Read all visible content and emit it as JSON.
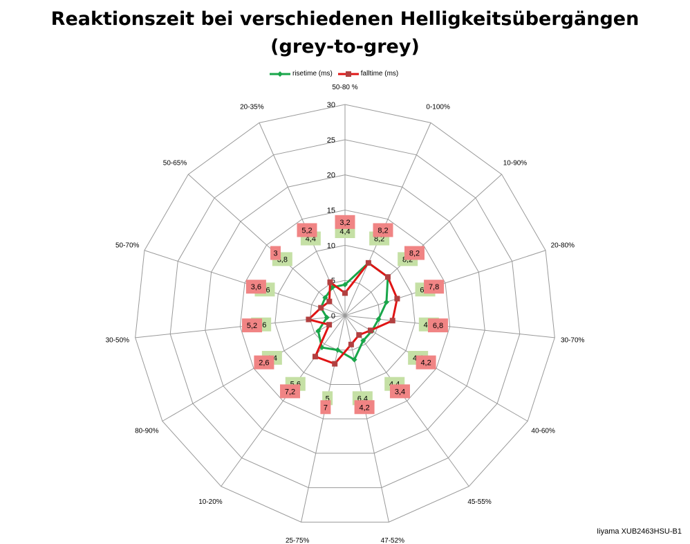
{
  "title_line1": "Reaktionszeit bei verschiedenen Helligkeitsübergängen",
  "title_line2": "(grey-to-grey)",
  "watermark": "Iiyama XUB2463HSU-B1",
  "colors": {
    "rise": "#19A64A",
    "fall": "#E01414",
    "fall_marker": "#B24040",
    "rise_label_bg": "#C5E0A5",
    "fall_label_bg": "#F08484",
    "fall_label_bg_dark": "#E07050",
    "grid": "#999999"
  },
  "chart_data": {
    "type": "radar",
    "title": "Reaktionszeit bei verschiedenen Helligkeitsübergängen (grey-to-grey)",
    "categories": [
      "50-80 %",
      "0-100%",
      "10-90%",
      "20-80%",
      "30-70%",
      "40-60%",
      "45-55%",
      "47-52%",
      "25-75%",
      "10-20%",
      "80-90%",
      "30-50%",
      "50-70%",
      "50-65%",
      "20-35%"
    ],
    "series": [
      {
        "name": "risetime (ms)",
        "values": [
          4.4,
          8.2,
          8.2,
          6.2,
          4.8,
          4.4,
          4.4,
          6.4,
          5,
          5.6,
          4.4,
          2.6,
          3.6,
          3.8,
          4.4
        ]
      },
      {
        "name": "falltime (ms)",
        "values": [
          3.2,
          8.2,
          8.2,
          7.8,
          6.8,
          4.2,
          3.4,
          4.2,
          7,
          7.2,
          2.6,
          5.2,
          3.6,
          3,
          5.2
        ]
      }
    ],
    "rlim": [
      0,
      30
    ],
    "ticks": [
      "0",
      "5",
      "10",
      "15",
      "20",
      "25",
      "30"
    ],
    "legend": "top"
  }
}
